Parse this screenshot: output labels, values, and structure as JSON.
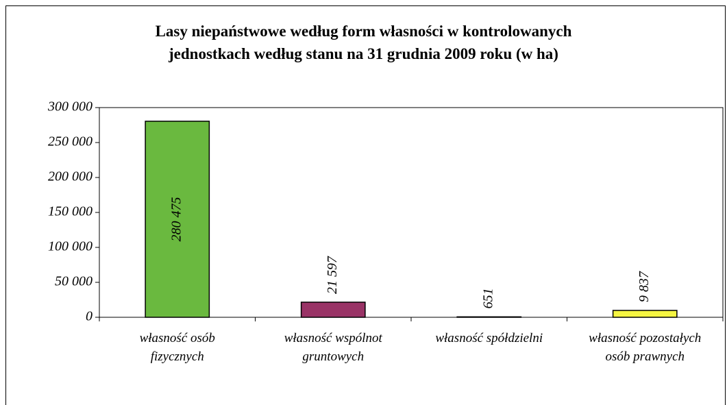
{
  "chart_data": {
    "type": "bar",
    "title": [
      "Lasy niepaństwowe według form własności w kontrolowanych",
      "jednostkach według stanu na 31 grudnia 2009 roku (w ha)"
    ],
    "categories": [
      "własność osób fizycznych",
      "własność wspólnot gruntowych",
      "własność spółdzielni",
      "własność pozostałych osób prawnych"
    ],
    "values": [
      280475,
      21597,
      651,
      9837
    ],
    "value_labels": [
      "280 475",
      "21 597",
      "651",
      "9 837"
    ],
    "colors": [
      "#6ab93f",
      "#993366",
      "#9999ff",
      "#f5f542"
    ],
    "ylim": [
      0,
      300000
    ],
    "yticks": [
      0,
      {
        "value": 50000,
        "label": "50 000"
      },
      {
        "value": 100000,
        "label": "100 000"
      },
      {
        "value": 150000,
        "label": "150 000"
      },
      {
        "value": 200000,
        "label": "200 000"
      },
      {
        "value": 250000,
        "label": "250 000"
      },
      {
        "value": 300000,
        "label": "300 000"
      }
    ],
    "grid": false
  }
}
